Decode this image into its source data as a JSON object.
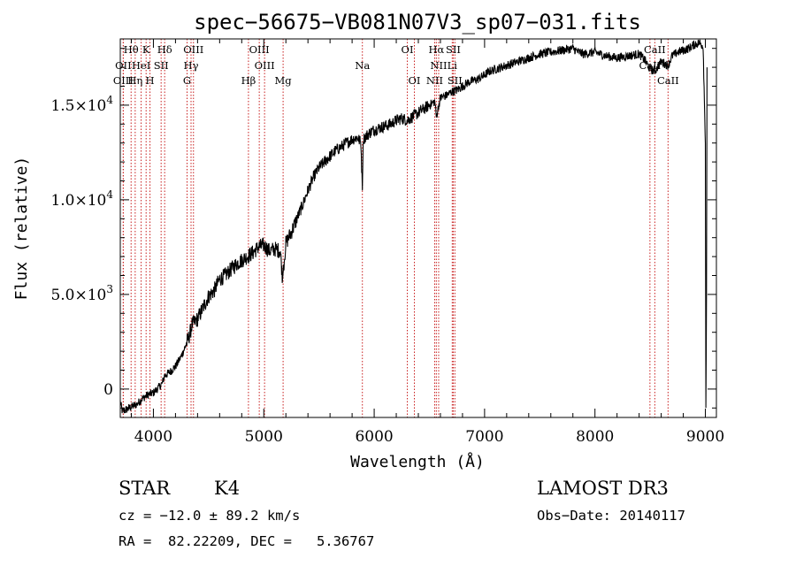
{
  "chart_data": {
    "type": "line",
    "title": "spec−56675−VB081N07V3_sp07−031.fits",
    "xlabel": "Wavelength (Å)",
    "ylabel": "Flux (relative)",
    "xlim": [
      3700,
      9100
    ],
    "ylim": [
      -1500,
      18500
    ],
    "xticks": [
      {
        "value": 4000,
        "label": "4000"
      },
      {
        "value": 5000,
        "label": "5000"
      },
      {
        "value": 6000,
        "label": "6000"
      },
      {
        "value": 7000,
        "label": "7000"
      },
      {
        "value": 8000,
        "label": "8000"
      },
      {
        "value": 9000,
        "label": "9000"
      }
    ],
    "yticks": [
      {
        "value": 0,
        "mant": "0",
        "exp": ""
      },
      {
        "value": 5000,
        "mant": "5.0×10",
        "exp": "3"
      },
      {
        "value": 10000,
        "mant": "1.0×10",
        "exp": "4"
      },
      {
        "value": 15000,
        "mant": "1.5×10",
        "exp": "4"
      }
    ],
    "series": [
      {
        "name": "spectrum",
        "x": [
          3700,
          3720,
          3750,
          3780,
          3800,
          3850,
          3900,
          3950,
          4000,
          4050,
          4080,
          4100,
          4150,
          4200,
          4250,
          4300,
          4330,
          4350,
          4400,
          4450,
          4500,
          4550,
          4600,
          4650,
          4700,
          4750,
          4800,
          4850,
          4900,
          4950,
          5000,
          5050,
          5100,
          5150,
          5170,
          5180,
          5200,
          5250,
          5300,
          5350,
          5400,
          5450,
          5500,
          5550,
          5600,
          5650,
          5700,
          5750,
          5800,
          5850,
          5880,
          5893,
          5900,
          5950,
          6000,
          6050,
          6100,
          6150,
          6200,
          6250,
          6300,
          6350,
          6400,
          6450,
          6500,
          6550,
          6563,
          6600,
          6650,
          6700,
          6750,
          6800,
          6850,
          6900,
          6950,
          7000,
          7050,
          7100,
          7150,
          7200,
          7300,
          7400,
          7500,
          7600,
          7700,
          7800,
          7850,
          7900,
          8000,
          8100,
          8200,
          8300,
          8400,
          8450,
          8498,
          8542,
          8600,
          8662,
          8700,
          8750,
          8800,
          8850,
          8900,
          8950,
          8980,
          9000,
          9005,
          9010,
          9015
        ],
        "y": [
          -700,
          -1200,
          -1100,
          -1000,
          -950,
          -800,
          -500,
          -300,
          -200,
          100,
          300,
          700,
          900,
          1200,
          1700,
          2400,
          2900,
          3400,
          3700,
          4300,
          4900,
          5200,
          5800,
          6000,
          6300,
          6600,
          6800,
          7000,
          7200,
          7500,
          7600,
          7300,
          7400,
          7300,
          5800,
          6500,
          7700,
          8300,
          9000,
          9700,
          10500,
          11200,
          11700,
          12000,
          12300,
          12600,
          12800,
          13000,
          13200,
          13300,
          13000,
          10500,
          13200,
          13500,
          13700,
          13800,
          13900,
          14000,
          14200,
          14300,
          14200,
          14400,
          14600,
          14800,
          15000,
          15200,
          14400,
          15400,
          15500,
          15700,
          15800,
          16000,
          16200,
          16300,
          16400,
          16600,
          16800,
          16900,
          17000,
          17100,
          17300,
          17500,
          17700,
          17800,
          17900,
          18000,
          17800,
          17700,
          17800,
          17600,
          17500,
          17600,
          17700,
          17400,
          16900,
          16800,
          17300,
          17100,
          17600,
          17800,
          17900,
          18000,
          18200,
          18300,
          18100,
          13000,
          -1000,
          5000,
          17000
        ]
      }
    ],
    "lines": [
      {
        "label": "Hθ",
        "x": 3798,
        "row": 0
      },
      {
        "label": "K",
        "x": 3934,
        "row": 0
      },
      {
        "label": "Hδ",
        "x": 4102,
        "row": 0
      },
      {
        "label": "OIII",
        "x": 4363,
        "row": 0
      },
      {
        "label": "OIII",
        "x": 4959,
        "row": 0
      },
      {
        "label": "OI",
        "x": 6300,
        "row": 0
      },
      {
        "label": "Hα",
        "x": 6563,
        "row": 0
      },
      {
        "label": "SII",
        "x": 6716,
        "row": 0
      },
      {
        "label": "CaII",
        "x": 8542,
        "row": 0
      },
      {
        "label": "OII",
        "x": 3727,
        "row": 1
      },
      {
        "label": "HeI",
        "x": 3889,
        "row": 1
      },
      {
        "label": "SII",
        "x": 4070,
        "row": 1
      },
      {
        "label": "Hγ",
        "x": 4341,
        "row": 1
      },
      {
        "label": "OIII",
        "x": 5007,
        "row": 1
      },
      {
        "label": "Na",
        "x": 5893,
        "row": 1
      },
      {
        "label": "NII",
        "x": 6584,
        "row": 1
      },
      {
        "label": "Li",
        "x": 6707,
        "row": 1
      },
      {
        "label": "CaII",
        "x": 8498,
        "row": 1
      },
      {
        "label": "OIII",
        "x": 3727,
        "row": 2
      },
      {
        "label": "Hη",
        "x": 3835,
        "row": 2
      },
      {
        "label": "H",
        "x": 3969,
        "row": 2
      },
      {
        "label": "G",
        "x": 4305,
        "row": 2
      },
      {
        "label": "Hβ",
        "x": 4861,
        "row": 2
      },
      {
        "label": "Mg",
        "x": 5175,
        "row": 2
      },
      {
        "label": "OI",
        "x": 6364,
        "row": 2
      },
      {
        "label": "NII",
        "x": 6548,
        "row": 2
      },
      {
        "label": "SII",
        "x": 6731,
        "row": 2
      },
      {
        "label": "CaII",
        "x": 8662,
        "row": 2
      }
    ]
  },
  "info": {
    "object_type": "STAR",
    "subclass": "K4",
    "survey": "LAMOST DR3",
    "redshift": "cz = −12.0 ± 89.2 km/s",
    "obs_date": "Obs−Date: 20140117",
    "coords": "RA =  82.22209, DEC =   5.36767"
  },
  "colors": {
    "line_marker": "#c81e1e",
    "spectrum": "#000000",
    "axis": "#000000"
  }
}
